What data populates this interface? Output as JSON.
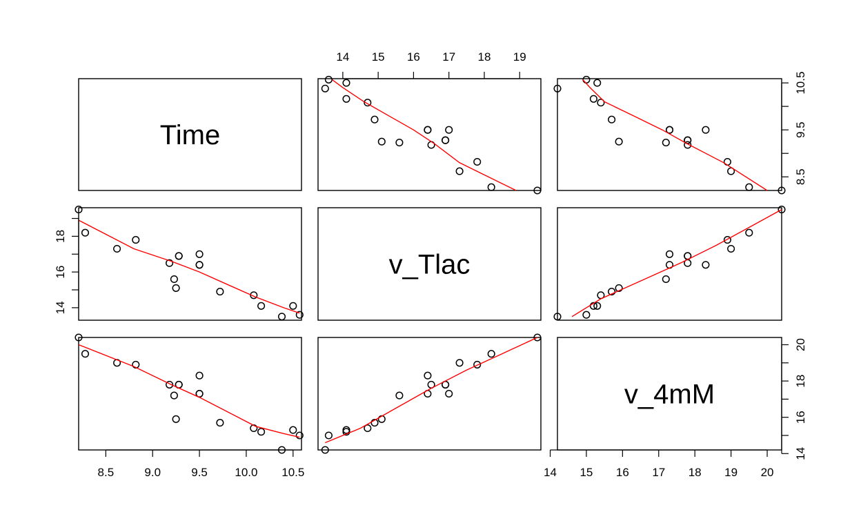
{
  "chart_data": {
    "type": "scatter",
    "matrix": "pairs",
    "variables": [
      "Time",
      "v_Tlac",
      "v_4mM"
    ],
    "ranges": {
      "Time": [
        8.21,
        10.59
      ],
      "v_Tlac": [
        13.3,
        19.6
      ],
      "v_4mM": [
        14.2,
        20.4
      ]
    },
    "ticks": {
      "Time": [
        8.5,
        9.0,
        9.5,
        10.0,
        10.5
      ],
      "v_Tlac": [
        14,
        15,
        16,
        17,
        18,
        19
      ],
      "v_4mM": [
        14,
        15,
        16,
        17,
        18,
        19,
        20
      ]
    },
    "tick_labels": {
      "top_v_Tlac": [
        "14",
        "15",
        "16",
        "17",
        "18",
        "19"
      ],
      "right_Time": [
        "10.5",
        "9.5",
        "8.5"
      ],
      "left_v_Tlac": [
        "18",
        "16",
        "14"
      ],
      "right_v_4mM": [
        "20",
        "18",
        "16",
        "14"
      ],
      "bottom_Time": [
        "8.5",
        "9.0",
        "9.5",
        "10.0",
        "10.5"
      ],
      "bottom_v_4mM": [
        "14",
        "15",
        "16",
        "17",
        "18",
        "19",
        "20"
      ]
    },
    "observations": {
      "Time": [
        8.21,
        8.28,
        8.62,
        8.82,
        9.18,
        9.23,
        9.25,
        9.28,
        9.28,
        9.5,
        9.5,
        9.5,
        9.72,
        10.08,
        10.16,
        10.38,
        10.5,
        10.57
      ],
      "v_Tlac": [
        19.5,
        18.2,
        17.3,
        17.8,
        16.5,
        15.6,
        15.1,
        16.9,
        16.9,
        16.4,
        17.0,
        16.4,
        14.9,
        14.7,
        14.1,
        13.5,
        14.1,
        13.6
      ],
      "v_4mM": [
        20.4,
        19.5,
        19.0,
        18.9,
        17.8,
        17.2,
        15.9,
        17.8,
        17.8,
        18.3,
        17.3,
        17.3,
        15.7,
        15.4,
        15.2,
        14.2,
        15.3,
        15.0
      ]
    },
    "smooth_lines": {
      "Time_vs_v_Tlac": {
        "x": [
          8.21,
          8.8,
          9.2,
          9.5,
          9.8,
          10.1,
          10.4,
          10.57
        ],
        "y": [
          18.9,
          17.3,
          16.6,
          16.0,
          15.3,
          14.6,
          14.0,
          13.7
        ]
      },
      "Time_vs_v_4mM": {
        "x": [
          8.21,
          8.8,
          9.2,
          9.5,
          9.8,
          10.1,
          10.4,
          10.57
        ],
        "y": [
          20.0,
          18.8,
          17.8,
          17.1,
          16.3,
          15.5,
          15.1,
          14.9
        ]
      },
      "v_Tlac_vs_v_4mM": {
        "x": [
          13.5,
          14.5,
          15.5,
          16.5,
          17.5,
          18.5,
          19.5
        ],
        "y": [
          14.6,
          15.4,
          16.5,
          17.6,
          18.6,
          19.5,
          20.4
        ]
      }
    },
    "colors": {
      "points": "#000000",
      "smooth": "#ff0000",
      "frame": "#000000",
      "background": "#ffffff"
    },
    "grid": false,
    "legend": "none"
  }
}
